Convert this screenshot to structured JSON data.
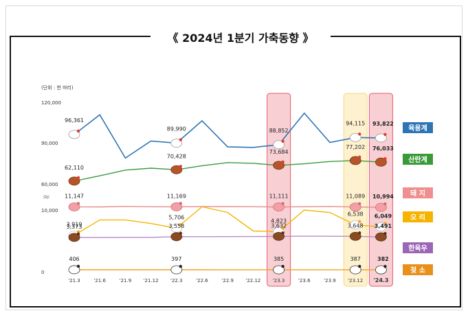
{
  "chart_data": {
    "type": "line",
    "title": "《 2024년 1분기 가축동향 》",
    "unit_note": "(단위 : 천 마리)",
    "y_ticks": [
      "120,000",
      "90,000",
      "60,000",
      "10,000",
      "0"
    ],
    "y_break_symbol": "≈",
    "grid": false,
    "x": [
      "'21.3",
      "'21.6",
      "'21.9",
      "'21.12",
      "'22.3",
      "'22.6",
      "'22.9",
      "'22.12",
      "'23.3",
      "'23.6",
      "'23.9",
      "'23.12",
      "'24.3"
    ],
    "series": [
      {
        "name": "육용계",
        "color": "#2e75b6",
        "label_bg": "#2e75b6",
        "values": [
          96361,
          110800,
          79000,
          91500,
          89990,
          106400,
          87300,
          86800,
          88852,
          112000,
          90500,
          94115,
          93822
        ]
      },
      {
        "name": "산란계",
        "color": "#3a9a3a",
        "label_bg": "#3a9a3a",
        "values": [
          62110,
          66000,
          70200,
          71600,
          70428,
          73400,
          75700,
          75200,
          73684,
          74800,
          76500,
          77202,
          76033
        ]
      },
      {
        "name": "돼 지",
        "color": "#e88a8a",
        "label_bg": "#ef8f8f",
        "values": [
          11147,
          11130,
          11320,
          11200,
          11169,
          11280,
          11260,
          11230,
          11111,
          11200,
          11310,
          11089,
          10994
        ]
      },
      {
        "name": "오 리",
        "color": "#f5b400",
        "label_bg": "#f5b400",
        "values": [
          3919,
          7800,
          7800,
          6900,
          5706,
          11200,
          9700,
          5000,
          4823,
          10000,
          9700,
          6538,
          6049
        ]
      },
      {
        "name": "한육우",
        "color": "#b58ac7",
        "label_bg": "#9a66b5",
        "values": [
          3373,
          3373,
          3375,
          3376,
          3558,
          3560,
          3570,
          3590,
          3632,
          3680,
          3660,
          3648,
          3491
        ]
      },
      {
        "name": "젖 소",
        "color": "#f0a020",
        "label_bg": "#e8901a",
        "values": [
          406,
          405,
          400,
          398,
          397,
          395,
          393,
          390,
          385,
          388,
          389,
          387,
          382
        ]
      }
    ],
    "value_labels": [
      {
        "series": 0,
        "labels": [
          "96,361",
          "89,990",
          "88,852",
          "94,115",
          "93,822"
        ]
      },
      {
        "series": 1,
        "labels": [
          "62,110",
          "70,428",
          "73,684",
          "77,202",
          "76,033"
        ]
      },
      {
        "series": 2,
        "labels": [
          "11,147",
          "11,169",
          "11,111",
          "11,089",
          "10,994"
        ]
      },
      {
        "series": 3,
        "labels": [
          "3,919",
          "5,706",
          "4,823",
          "6,538",
          "6,049"
        ]
      },
      {
        "series": 4,
        "labels": [
          "3,373",
          "3,558",
          "3,632",
          "3,648",
          "3,491"
        ]
      },
      {
        "series": 5,
        "labels": [
          "406",
          "397",
          "385",
          "387",
          "382"
        ]
      }
    ],
    "labeled_quarters": [
      "'21.3",
      "'22.3",
      "'23.3",
      "'23.12",
      "'24.3"
    ],
    "highlight_quarters": [
      {
        "quarter": "'23.3",
        "color": "#f8d0d4"
      },
      {
        "quarter": "'23.12",
        "color": "#fdf1cf"
      },
      {
        "quarter": "'24.3",
        "color": "#f8d0d4"
      }
    ],
    "icons": [
      "chicken-icon",
      "hen-icon",
      "pig-icon",
      "duck-icon",
      "cow-icon",
      "dairy-cow-icon"
    ]
  }
}
